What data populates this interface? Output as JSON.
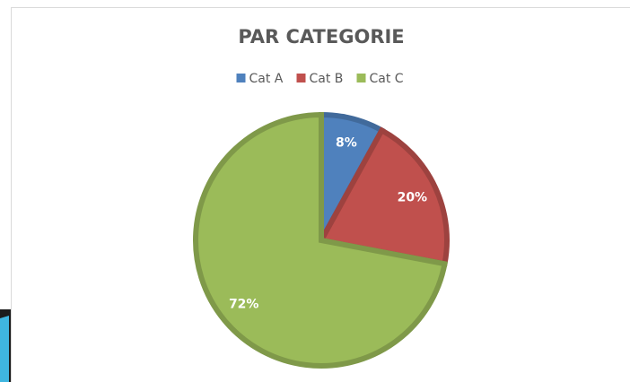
{
  "chart_data": {
    "type": "pie",
    "title": "PAR CATEGORIE",
    "categories": [
      "Cat A",
      "Cat B",
      "Cat C"
    ],
    "values": [
      8,
      20,
      72
    ],
    "value_labels": [
      "8%",
      "20%",
      "72%"
    ],
    "colors": [
      "#4f81bd",
      "#c0504d",
      "#9bbb59"
    ],
    "legend": "top"
  }
}
